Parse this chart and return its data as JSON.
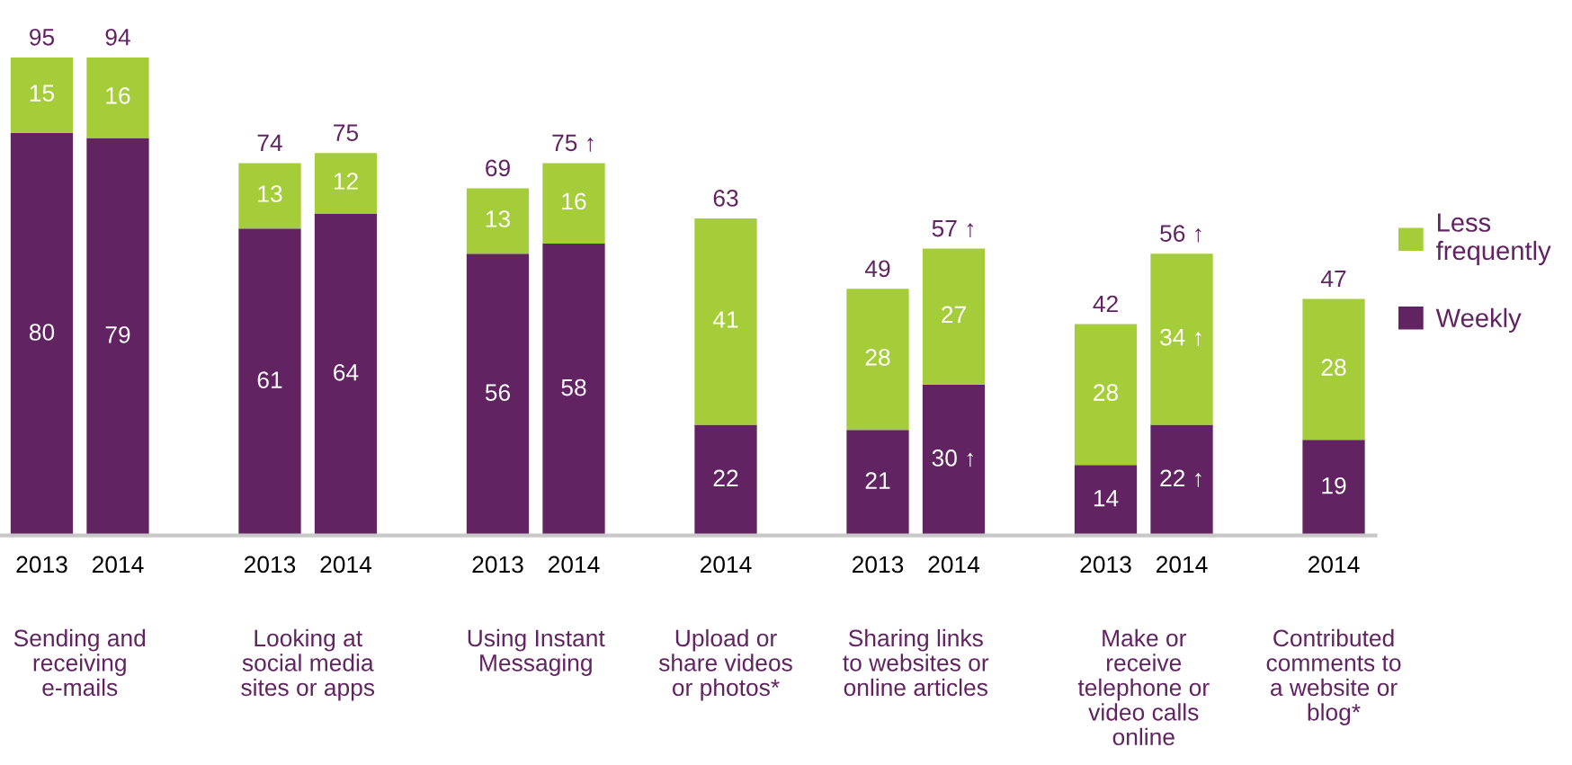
{
  "chart_data": {
    "type": "bar",
    "stacked": true,
    "categories": [
      "2013",
      "2014",
      null,
      "2013",
      "2014",
      null,
      "2013",
      "2014",
      null,
      "2014",
      null,
      "2013",
      "2014",
      null,
      "2013",
      "2014",
      null,
      "2014"
    ],
    "series": [
      {
        "name": "Weekly",
        "color": "#612362",
        "values": [
          80,
          79,
          null,
          61,
          64,
          null,
          56,
          58,
          null,
          22,
          null,
          21,
          30,
          null,
          14,
          22,
          null,
          19
        ],
        "value_labels": [
          "80",
          "79",
          null,
          "61",
          "64",
          null,
          "56",
          "58",
          null,
          "22",
          null,
          "21",
          "30 ↑",
          null,
          "14",
          "22 ↑",
          null,
          "19"
        ]
      },
      {
        "name": "Less\nfrequently",
        "color": "#a5cd39",
        "values": [
          15,
          16,
          null,
          13,
          12,
          null,
          13,
          16,
          null,
          41,
          null,
          28,
          27,
          null,
          28,
          34,
          null,
          28
        ],
        "value_labels": [
          "15",
          "16",
          null,
          "13",
          "12",
          null,
          "13",
          "16",
          null,
          "41",
          null,
          "28",
          "27",
          null,
          "28",
          "34 ↑",
          null,
          "28"
        ]
      }
    ],
    "totals": [
      "95",
      "94",
      null,
      "74",
      "75",
      null,
      "69",
      "75 ↑",
      null,
      "63",
      null,
      "49",
      "57 ↑",
      null,
      "42",
      "56 ↑",
      null,
      "47"
    ],
    "annotations": [
      "Sending and\nreceiving\ne-mails",
      "Looking at\nsocial media\nsites or apps",
      "Using Instant\nMessaging",
      "Upload or\nshare videos\nor photos*",
      "Sharing links\nto websites or\nonline articles",
      "Make or\nreceive\ntelephone or\nvideo calls\nonline",
      "Contributed\ncomments to\na website or\nblog*"
    ],
    "legend": "right",
    "tick_labels": "x",
    "grid": false
  }
}
